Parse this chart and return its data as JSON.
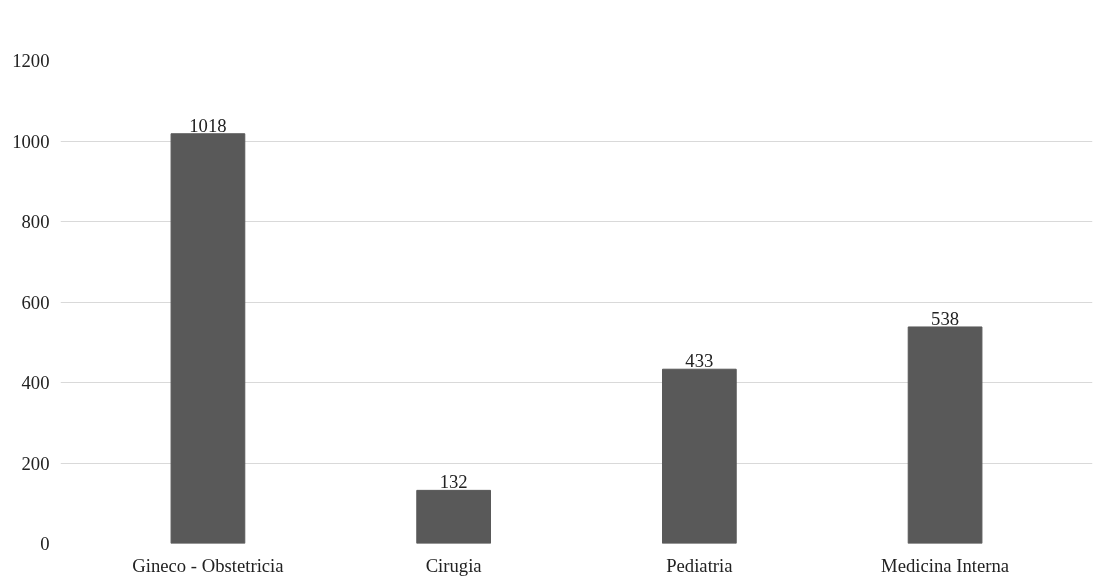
{
  "chart_data": {
    "type": "bar",
    "categories": [
      "Gineco - Obstetricia",
      "Cirugia",
      "Pediatria",
      "Medicina Interna"
    ],
    "values": [
      1018,
      132,
      433,
      538
    ],
    "color": "#595959",
    "ylim": [
      0,
      1200
    ],
    "yticks": [
      0,
      200,
      400,
      600,
      800,
      1000,
      1200
    ],
    "grid": "y",
    "data_labels": true
  }
}
